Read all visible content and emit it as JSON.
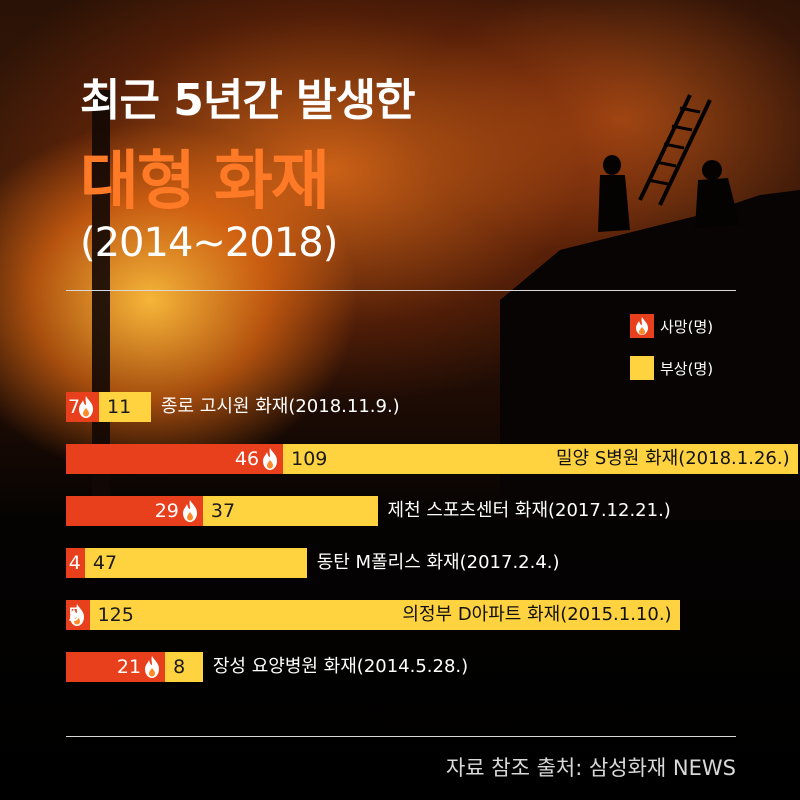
{
  "title": {
    "line1": "최근 5년간 발생한",
    "line2": "대형 화재",
    "line3": "(2014~2018)"
  },
  "legend": {
    "deaths": {
      "label": "사망(명)",
      "icon": "fire-icon",
      "color": "#e8401c"
    },
    "injuries": {
      "label": "부상(명)",
      "color": "#ffd23f"
    }
  },
  "source": "자료 참조 출처: 삼성화재 NEWS",
  "colors": {
    "title_accent": "#ff7a26",
    "death": "#e8401c",
    "injury": "#ffd23f"
  },
  "chart_data": {
    "type": "bar",
    "orientation": "horizontal",
    "stacked": true,
    "categories": [
      "종로 고시원 화재(2018.11.9.)",
      "밀양 S병원 화재(2018.1.26.)",
      "제천 스포츠센터 화재(2017.12.21.)",
      "동탄 M폴리스 화재(2017.2.4.)",
      "의정부 D아파트 화재(2015.1.10.)",
      "장성 요양병원 화재(2014.5.28.)"
    ],
    "series": [
      {
        "name": "사망(명)",
        "values": [
          7,
          46,
          29,
          4,
          5,
          21
        ]
      },
      {
        "name": "부상(명)",
        "values": [
          11,
          109,
          37,
          47,
          125,
          8
        ]
      }
    ]
  }
}
